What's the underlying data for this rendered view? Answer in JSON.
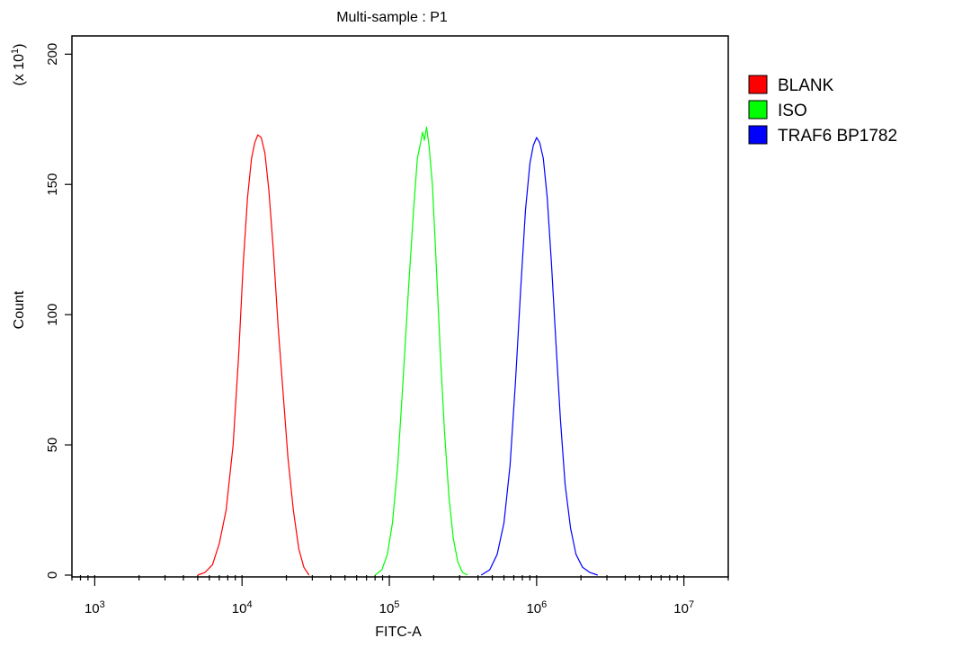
{
  "chart_data": {
    "type": "line",
    "title": "Multi-sample : P1",
    "xlabel": "FITC-A",
    "ylabel": "Count",
    "y_multiplier_label": "(x 10",
    "y_multiplier_exp": "1",
    "x_scale": "log",
    "xlim": [
      700,
      20000000
    ],
    "ylim": [
      0,
      207
    ],
    "x_ticks": [
      {
        "value": 1000,
        "base": "10",
        "exp": "3"
      },
      {
        "value": 10000,
        "base": "10",
        "exp": "4"
      },
      {
        "value": 100000,
        "base": "10",
        "exp": "5"
      },
      {
        "value": 1000000,
        "base": "10",
        "exp": "6"
      },
      {
        "value": 10000000,
        "base": "10",
        "exp": "7"
      }
    ],
    "y_ticks": [
      0,
      50,
      100,
      150,
      200
    ],
    "grid": false,
    "legend_position": "right",
    "series": [
      {
        "name": "BLANK",
        "color": "#ff0000",
        "points": [
          [
            5000,
            0
          ],
          [
            5600,
            1
          ],
          [
            6300,
            4
          ],
          [
            7000,
            12
          ],
          [
            7800,
            25
          ],
          [
            8700,
            50
          ],
          [
            9500,
            85
          ],
          [
            10200,
            120
          ],
          [
            10900,
            145
          ],
          [
            11600,
            160
          ],
          [
            12200,
            166
          ],
          [
            12800,
            169
          ],
          [
            13500,
            168
          ],
          [
            14300,
            162
          ],
          [
            15200,
            148
          ],
          [
            16300,
            125
          ],
          [
            17600,
            95
          ],
          [
            19000,
            70
          ],
          [
            20500,
            45
          ],
          [
            22300,
            25
          ],
          [
            24300,
            10
          ],
          [
            26300,
            3
          ],
          [
            28500,
            0
          ]
        ]
      },
      {
        "name": "ISO",
        "color": "#00ff00",
        "points": [
          [
            80000,
            0
          ],
          [
            89000,
            2
          ],
          [
            97000,
            8
          ],
          [
            105000,
            20
          ],
          [
            114000,
            42
          ],
          [
            124000,
            75
          ],
          [
            135000,
            110
          ],
          [
            146000,
            140
          ],
          [
            155000,
            160
          ],
          [
            163000,
            166
          ],
          [
            168000,
            170
          ],
          [
            173000,
            167
          ],
          [
            179000,
            172
          ],
          [
            186000,
            165
          ],
          [
            196000,
            150
          ],
          [
            208000,
            120
          ],
          [
            222000,
            85
          ],
          [
            237000,
            55
          ],
          [
            254000,
            30
          ],
          [
            272000,
            14
          ],
          [
            292000,
            5
          ],
          [
            314000,
            1
          ],
          [
            340000,
            0
          ]
        ]
      },
      {
        "name": "TRAF6 BP1782",
        "color": "#0000ff",
        "points": [
          [
            420000,
            0
          ],
          [
            480000,
            2
          ],
          [
            540000,
            8
          ],
          [
            600000,
            20
          ],
          [
            660000,
            42
          ],
          [
            720000,
            75
          ],
          [
            780000,
            110
          ],
          [
            840000,
            140
          ],
          [
            900000,
            158
          ],
          [
            950000,
            165
          ],
          [
            1000000,
            168
          ],
          [
            1050000,
            166
          ],
          [
            1110000,
            160
          ],
          [
            1180000,
            145
          ],
          [
            1260000,
            120
          ],
          [
            1350000,
            90
          ],
          [
            1450000,
            60
          ],
          [
            1560000,
            35
          ],
          [
            1700000,
            18
          ],
          [
            1850000,
            8
          ],
          [
            2050000,
            3
          ],
          [
            2300000,
            1
          ],
          [
            2600000,
            0
          ]
        ]
      }
    ]
  }
}
